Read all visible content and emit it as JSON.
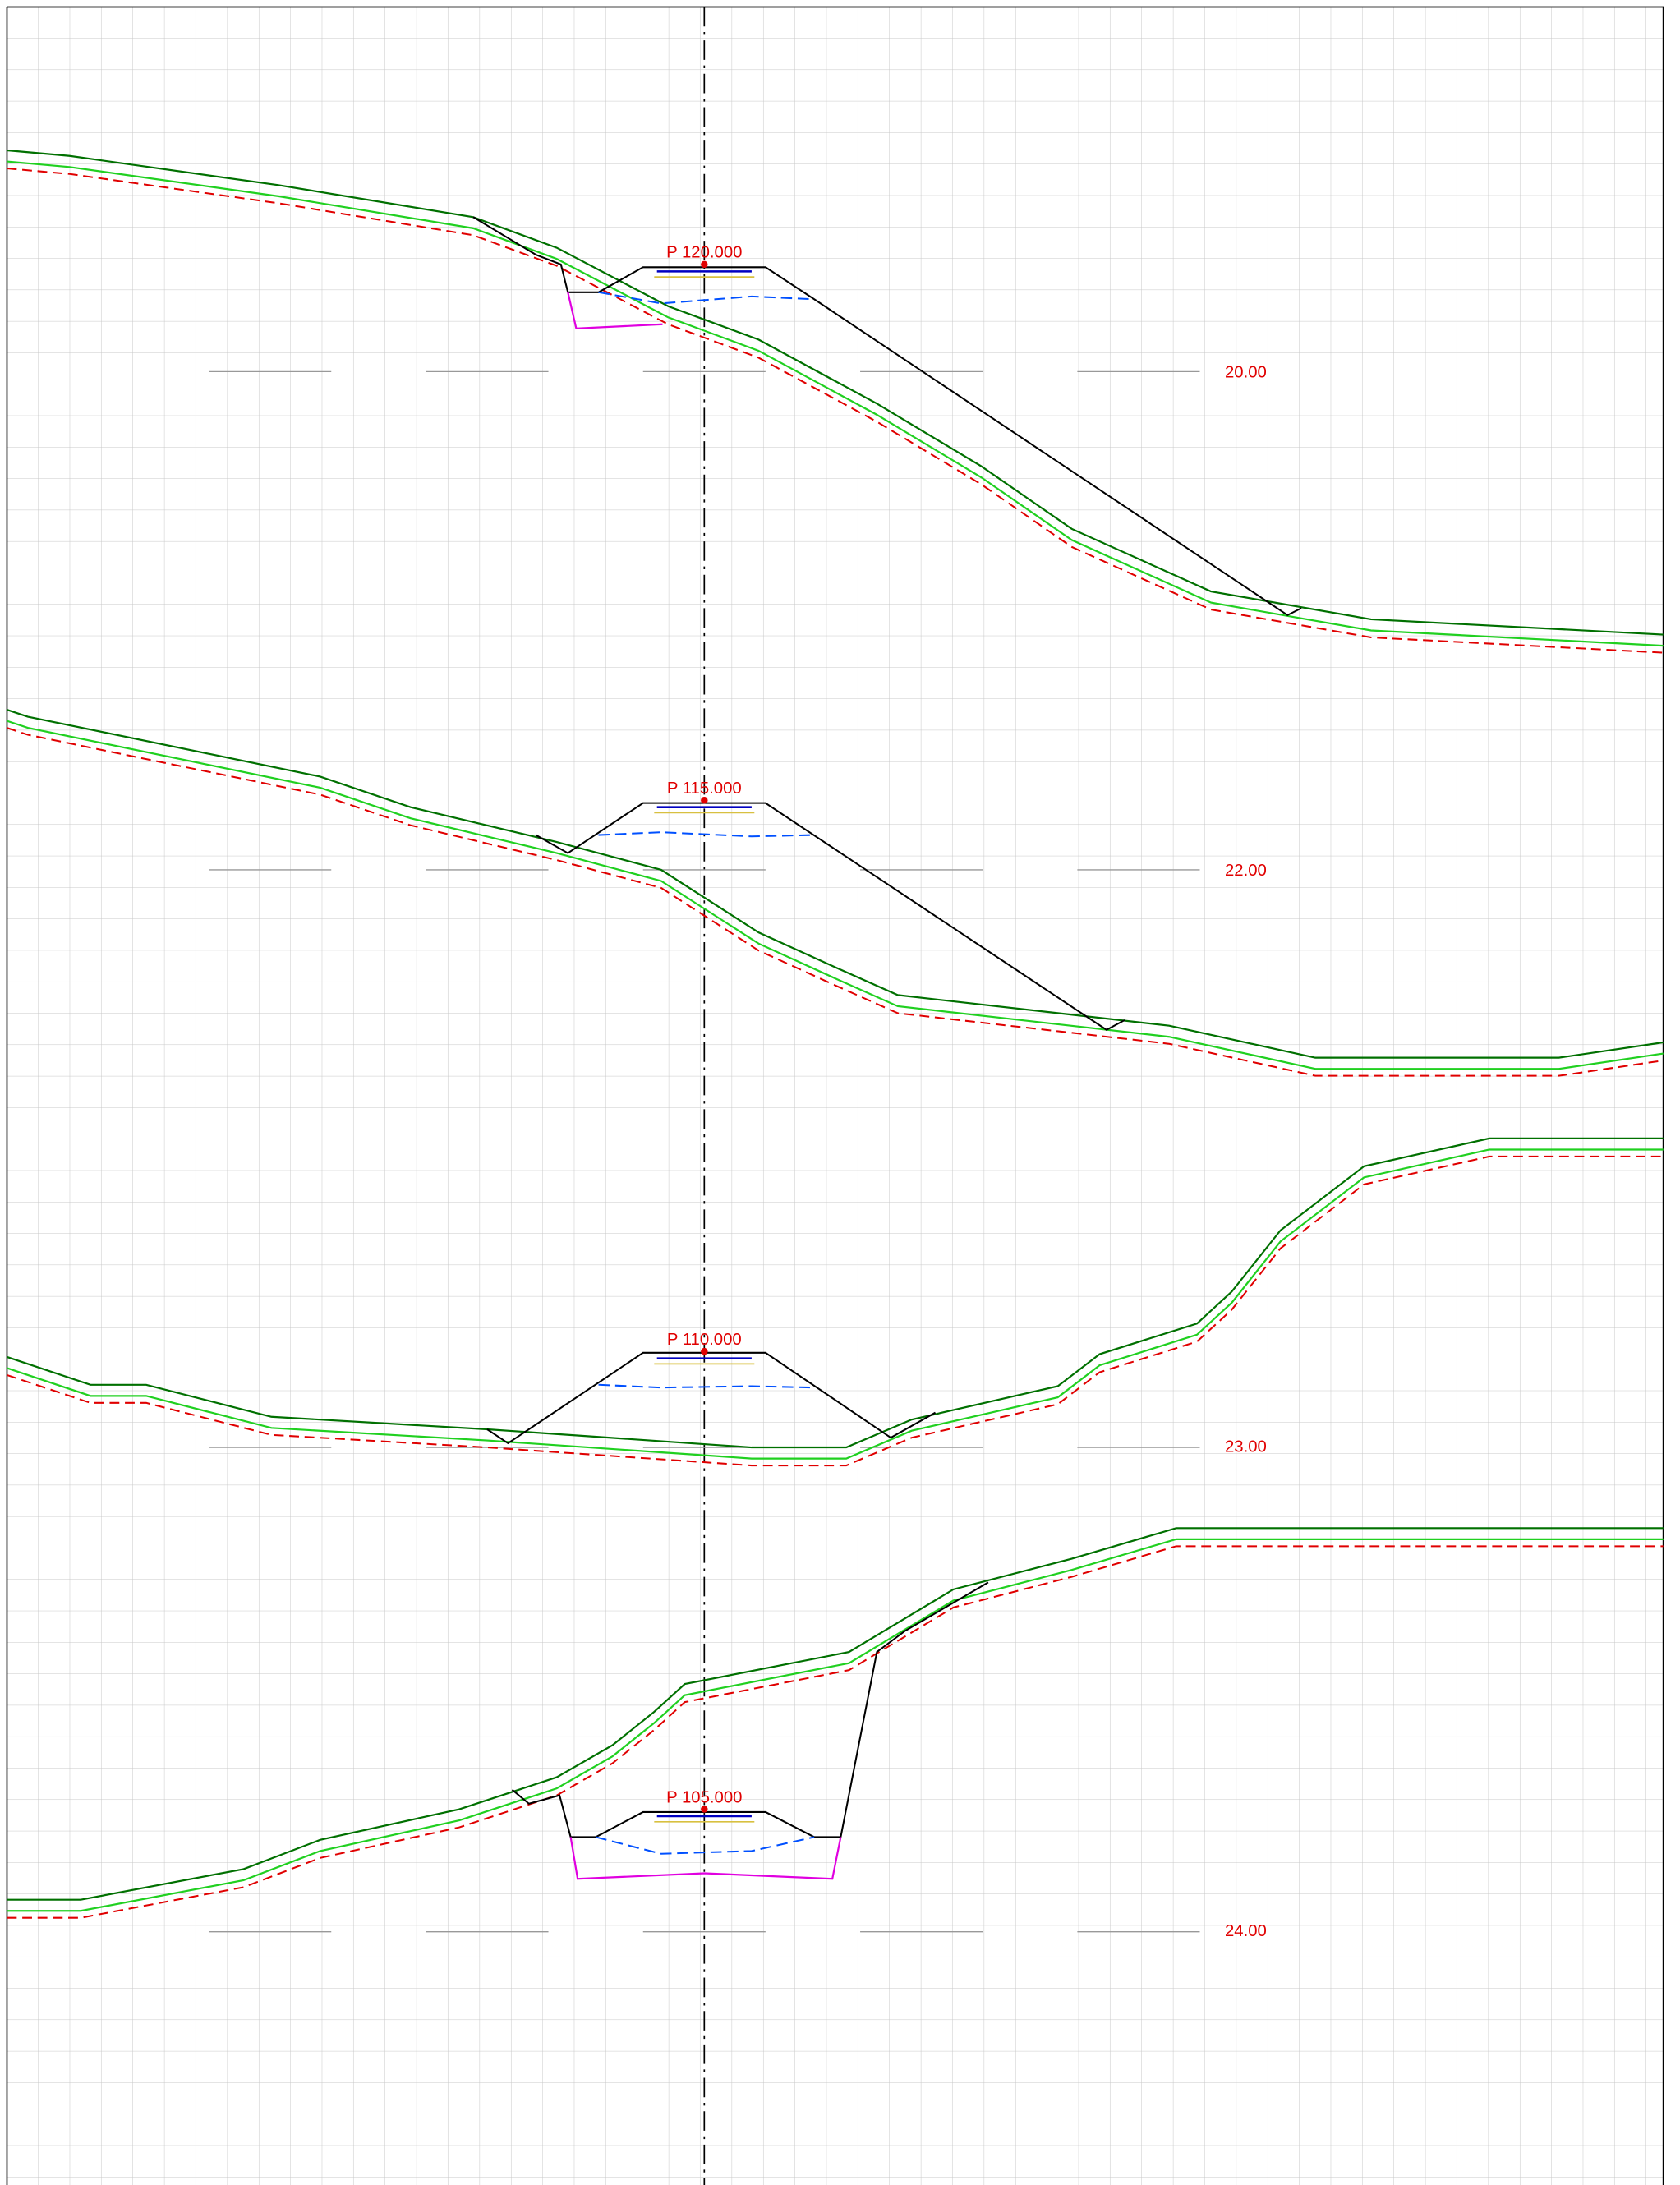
{
  "sections": [
    {
      "station": "P 120.000",
      "elevation": "20.00"
    },
    {
      "station": "P 115.000",
      "elevation": "22.00"
    },
    {
      "station": "P 110.000",
      "elevation": "23.00"
    },
    {
      "station": "P 105.000",
      "elevation": "24.00"
    }
  ]
}
